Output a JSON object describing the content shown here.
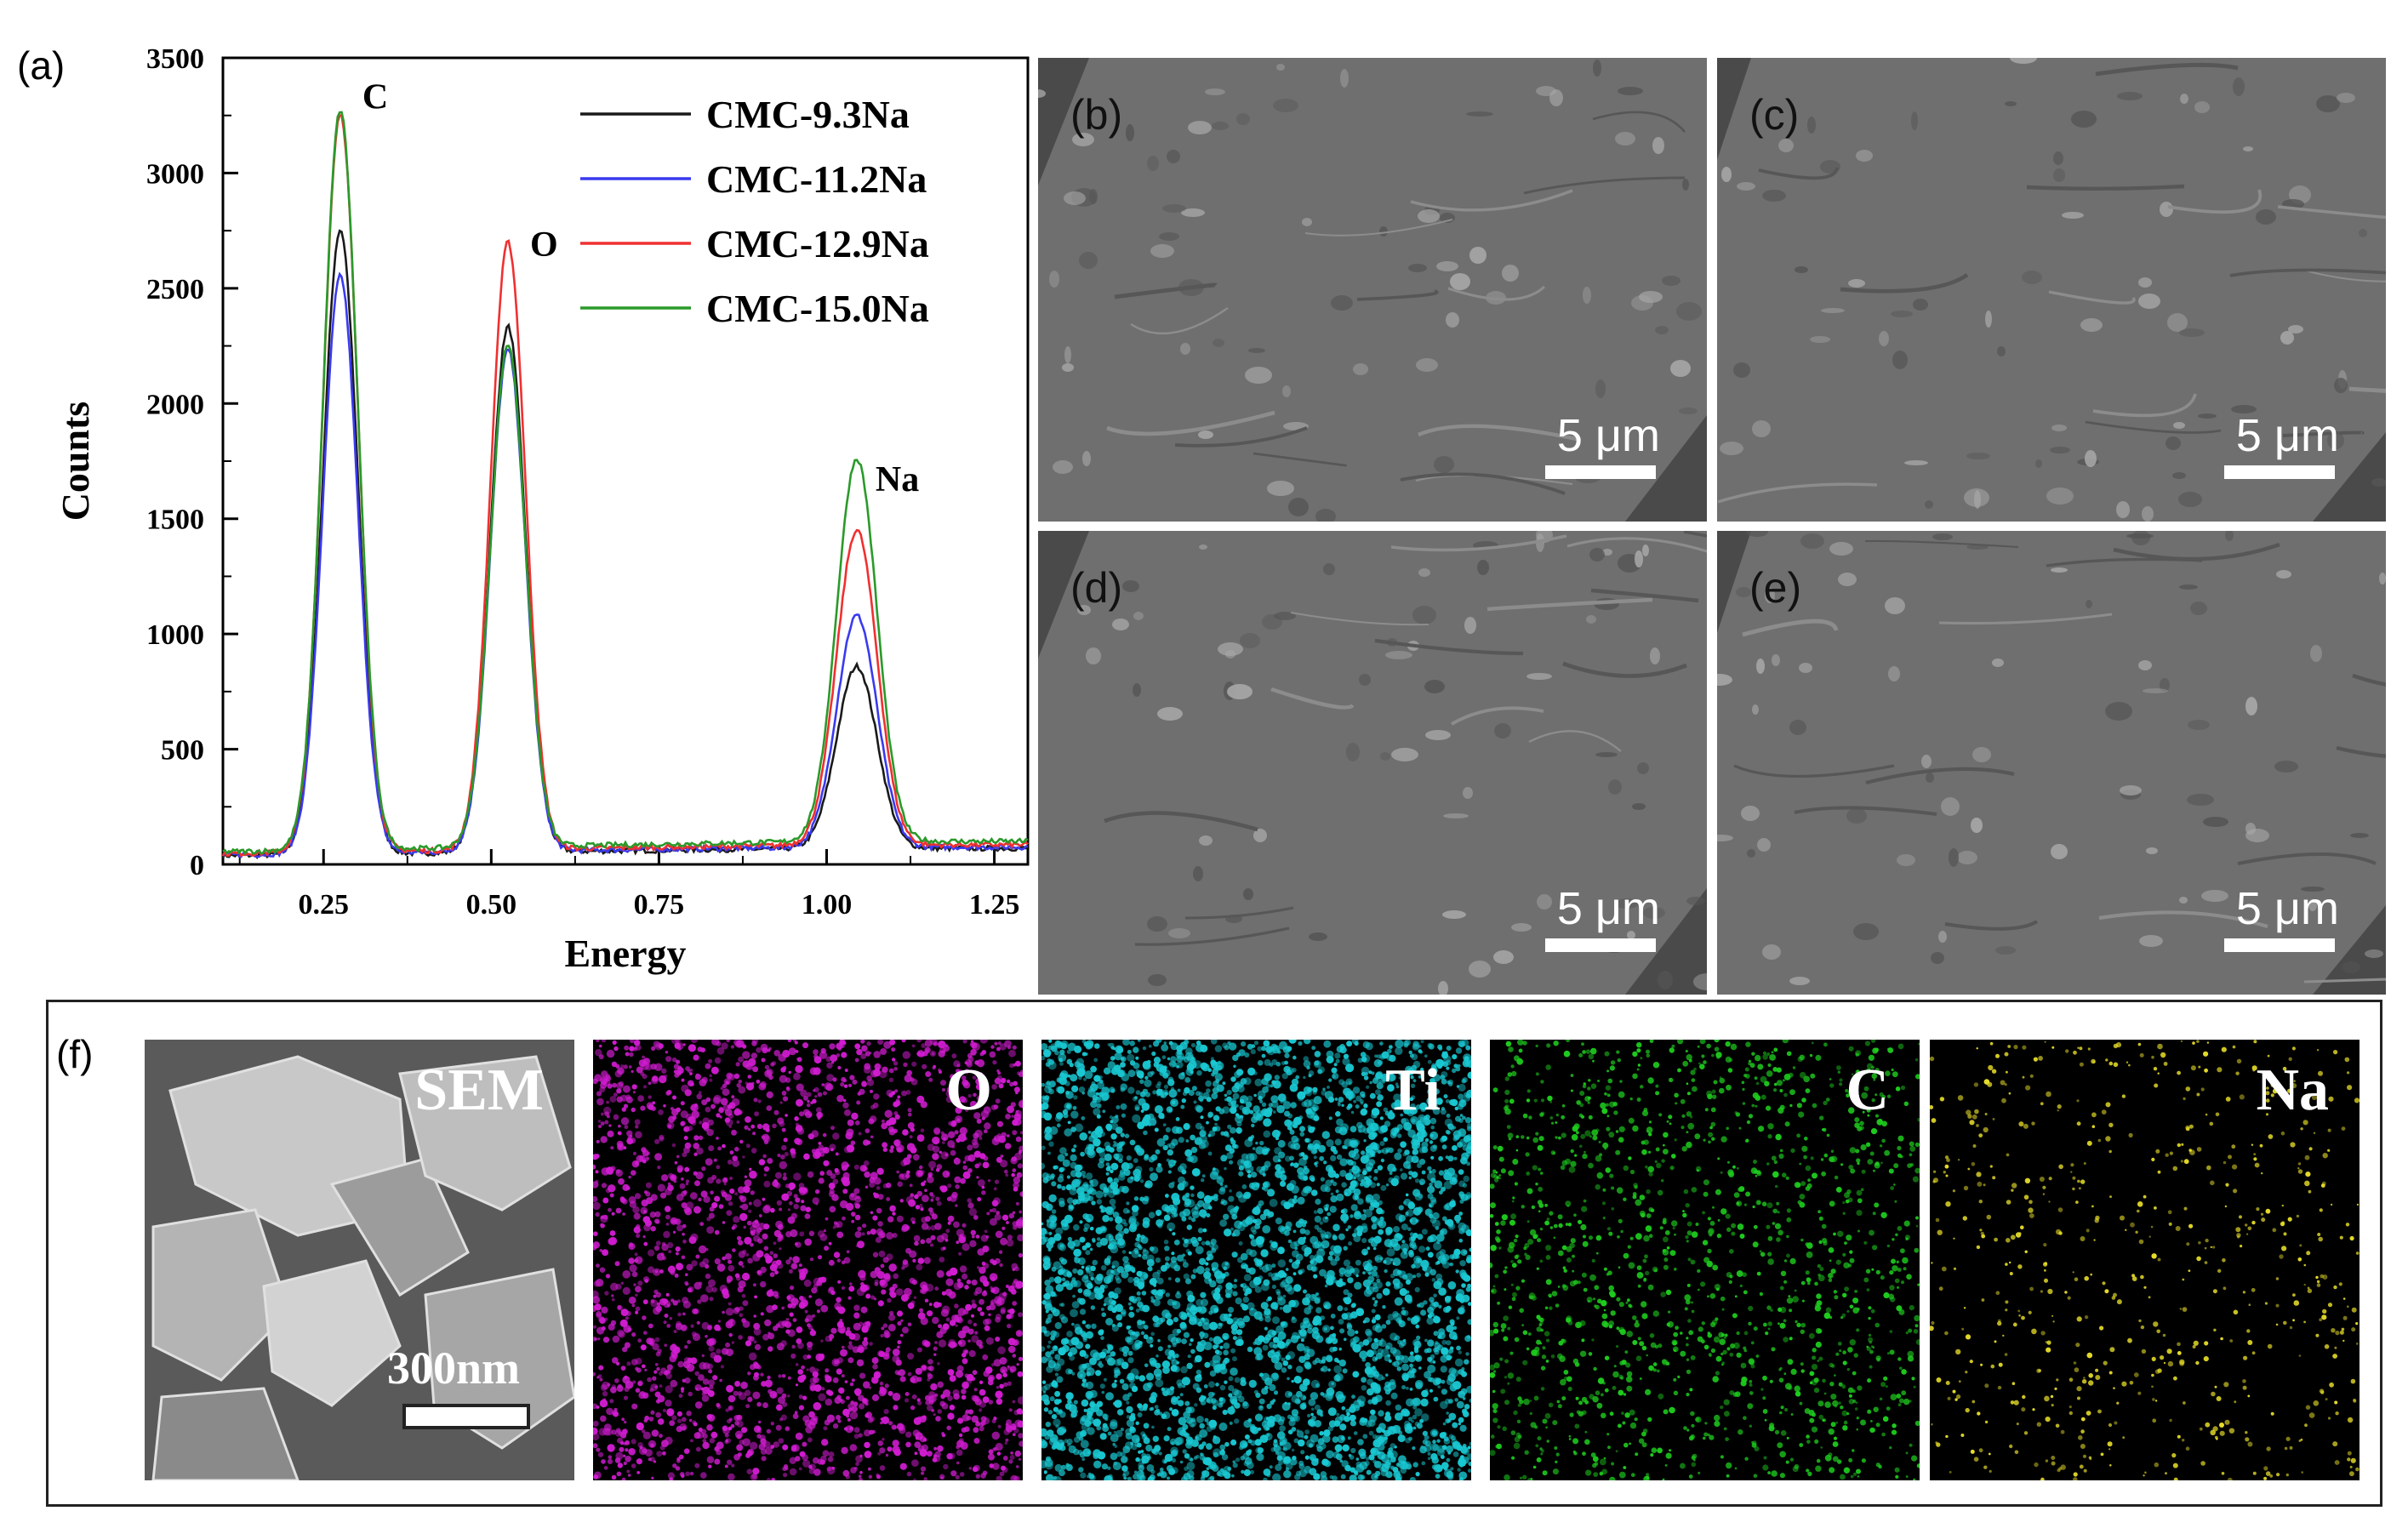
{
  "panel_labels": {
    "a": "(a)",
    "b": "(b)",
    "c": "(c)",
    "d": "(d)",
    "e": "(e)",
    "f": "(f)"
  },
  "sem_panels": [
    {
      "label": "(b)",
      "scale": "5 μm"
    },
    {
      "label": "(c)",
      "scale": "5 μm"
    },
    {
      "label": "(d)",
      "scale": "5 μm"
    },
    {
      "label": "(e)",
      "scale": "5 μm"
    }
  ],
  "maps": [
    {
      "label": "SEM",
      "scale": "300nm",
      "color": "#9a9a9a"
    },
    {
      "label": "O",
      "color": "#d21cd2"
    },
    {
      "label": "Ti",
      "color": "#19c8d2"
    },
    {
      "label": "C",
      "color": "#1ecc1e"
    },
    {
      "label": "Na",
      "color": "#e6dc28"
    }
  ],
  "chart_data": {
    "type": "line",
    "xlabel": "Energy",
    "ylabel": "Counts",
    "xlim": [
      0.1,
      1.3
    ],
    "ylim": [
      0,
      3500
    ],
    "xticks": [
      "0.25",
      "0.50",
      "0.75",
      "1.00",
      "1.25"
    ],
    "yticks": [
      "0",
      "500",
      "1000",
      "1500",
      "2000",
      "2500",
      "3000",
      "3500"
    ],
    "legend_position": "top-right",
    "annotations": [
      {
        "text": "C",
        "x": 0.28,
        "y": 3280
      },
      {
        "text": "O",
        "x": 0.53,
        "y": 2640
      },
      {
        "text": "Na",
        "x": 1.05,
        "y": 1620
      }
    ],
    "peaks": {
      "C": 0.275,
      "O": 0.525,
      "Na": 1.045
    },
    "series": [
      {
        "name": "CMC-9.3Na",
        "color": "#1a1a1a",
        "peak_C": 2780,
        "peak_O": 2350,
        "peak_Na": 860,
        "baseline": 70
      },
      {
        "name": "CMC-11.2Na",
        "color": "#3a3af0",
        "peak_C": 2580,
        "peak_O": 2250,
        "peak_Na": 1080,
        "baseline": 75
      },
      {
        "name": "CMC-12.9Na",
        "color": "#f03030",
        "peak_C": 3290,
        "peak_O": 2720,
        "peak_Na": 1450,
        "baseline": 85
      },
      {
        "name": "CMC-15.0Na",
        "color": "#2a9a2a",
        "peak_C": 3310,
        "peak_O": 2280,
        "peak_Na": 1760,
        "baseline": 100
      }
    ]
  }
}
